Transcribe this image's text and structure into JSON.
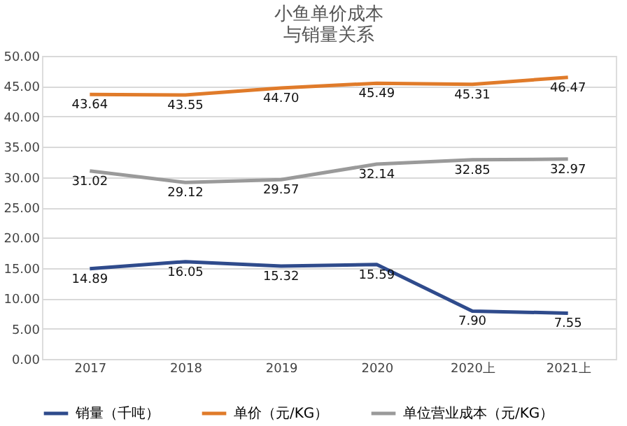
{
  "chart_data": {
    "type": "line",
    "title": "小鱼单价成本与销量关系",
    "categories": [
      "2017",
      "2018",
      "2019",
      "2020",
      "2020上",
      "2021上"
    ],
    "series": [
      {
        "name": "销量（千吨）",
        "color": "#2f4b8c",
        "values": [
          14.89,
          16.05,
          15.32,
          15.59,
          7.9,
          7.55
        ],
        "value_labels": [
          "14.89",
          "16.05",
          "15.32",
          "15.59",
          "7.90",
          "7.55"
        ]
      },
      {
        "name": "单价（元/KG）",
        "color": "#e07b2a",
        "values": [
          43.64,
          43.55,
          44.7,
          45.49,
          45.31,
          46.47
        ],
        "value_labels": [
          "43.64",
          "43.55",
          "44.70",
          "45.49",
          "45.31",
          "46.47"
        ]
      },
      {
        "name": "单位营业成本（元/KG）",
        "color": "#9a9a9a",
        "values": [
          31.02,
          29.12,
          29.57,
          32.14,
          32.85,
          32.97
        ],
        "value_labels": [
          "31.02",
          "29.12",
          "29.57",
          "32.14",
          "32.85",
          "32.97"
        ]
      }
    ],
    "ylim": [
      0,
      50
    ],
    "yticks": [
      {
        "value": 0,
        "label": "0.00"
      },
      {
        "value": 5,
        "label": "5.00"
      },
      {
        "value": 10,
        "label": "10.00"
      },
      {
        "value": 15,
        "label": "15.00"
      },
      {
        "value": 20,
        "label": "20.00"
      },
      {
        "value": 25,
        "label": "25.00"
      },
      {
        "value": 30,
        "label": "30.00"
      },
      {
        "value": 35,
        "label": "35.00"
      },
      {
        "value": 40,
        "label": "40.00"
      },
      {
        "value": 45,
        "label": "45.00"
      },
      {
        "value": 50,
        "label": "50.00"
      }
    ],
    "grid": "y",
    "legend": "bottom",
    "marker": "none",
    "line_style": "solid"
  }
}
